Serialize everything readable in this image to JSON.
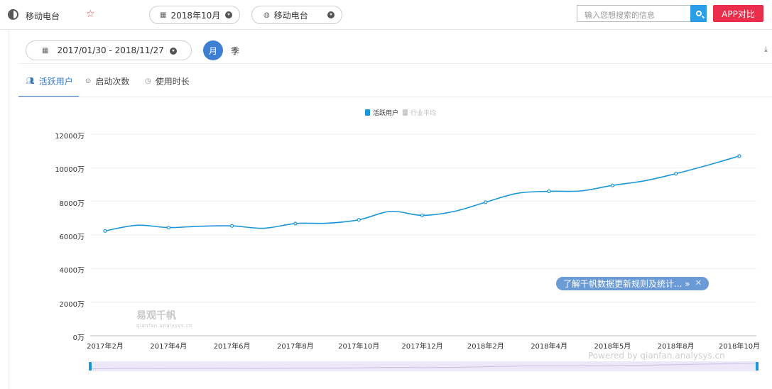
{
  "header": {
    "app_name": "移动电台",
    "month_selector": "2018年10月",
    "category_selector": "移动电台",
    "search_placeholder": "输入您想搜索的信息",
    "compare_button": "APP对比"
  },
  "controls": {
    "date_range": "2017/01/30 - 2018/11/27",
    "granularity_month": "月",
    "granularity_quarter": "季"
  },
  "tabs": [
    {
      "label": "活跃用户",
      "active": true
    },
    {
      "label": "启动次数",
      "active": false
    },
    {
      "label": "使用时长",
      "active": false
    }
  ],
  "watermark": {
    "name": "易观千帆",
    "url": "qianfan.analysys.cn"
  },
  "notice": {
    "text": "了解千帆数据更新规则及统计... »"
  },
  "powered_by": "Powered by qianfan.analysys.cn",
  "colors": {
    "accent": "#3a78c4",
    "series": "#1b97d6",
    "compare": "#ea2d4a"
  },
  "chart_data": {
    "type": "line",
    "legend": [
      "活跃用户",
      "行业平均"
    ],
    "legend_placement": "top-center",
    "grid": true,
    "x_labels": [
      "2017年2月",
      "2017年4月",
      "2017年6月",
      "2017年8月",
      "2017年10月",
      "2017年12月",
      "2018年2月",
      "2018年4月",
      "2018年5月",
      "2018年8月",
      "2018年10月"
    ],
    "y_ticks": [
      "0万",
      "2000万",
      "4000万",
      "6000万",
      "8000万",
      "10000万",
      "12000万"
    ],
    "ylim": [
      0,
      12000
    ],
    "series": [
      {
        "name": "活跃用户",
        "x": [
          "2017-02",
          "2017-03",
          "2017-04",
          "2017-05",
          "2017-06",
          "2017-07",
          "2017-08",
          "2017-09",
          "2017-10",
          "2017-11",
          "2017-12",
          "2018-01",
          "2018-02",
          "2018-03",
          "2018-04",
          "2018-05",
          "2018-06",
          "2018-07",
          "2018-08",
          "2018-09",
          "2018-10"
        ],
        "values": [
          6240,
          6580,
          6440,
          6520,
          6540,
          6400,
          6680,
          6700,
          6900,
          7400,
          7170,
          7400,
          7950,
          8480,
          8600,
          8620,
          8950,
          9220,
          9650,
          10150,
          10700
        ]
      }
    ]
  }
}
